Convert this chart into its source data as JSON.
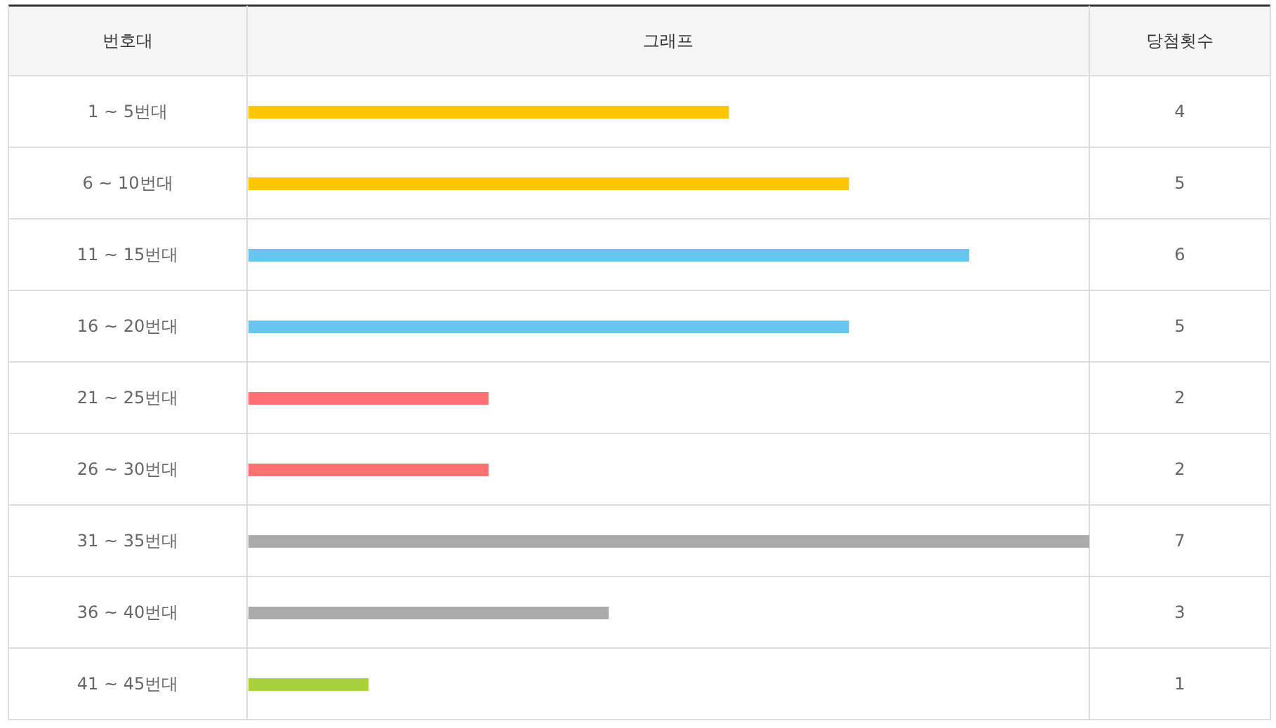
{
  "chart_data": {
    "type": "bar",
    "orientation": "horizontal",
    "ylabel": "번호대",
    "xlabel": "그래프",
    "annotations": [
      "당첨횟수"
    ],
    "categories": [
      "1 ~ 5번대",
      "6 ~ 10번대",
      "11 ~ 15번대",
      "16 ~ 20번대",
      "21 ~ 25번대",
      "26 ~ 30번대",
      "31 ~ 35번대",
      "36 ~ 40번대",
      "41 ~ 45번대"
    ],
    "values": [
      4,
      5,
      6,
      5,
      2,
      2,
      7,
      3,
      1
    ],
    "colors": [
      "#ffc600",
      "#ffc600",
      "#66c6f0",
      "#66c6f0",
      "#ff7070",
      "#ff7070",
      "#aaaaaa",
      "#aaaaaa",
      "#a8d03c"
    ],
    "data_labels": true
  }
}
